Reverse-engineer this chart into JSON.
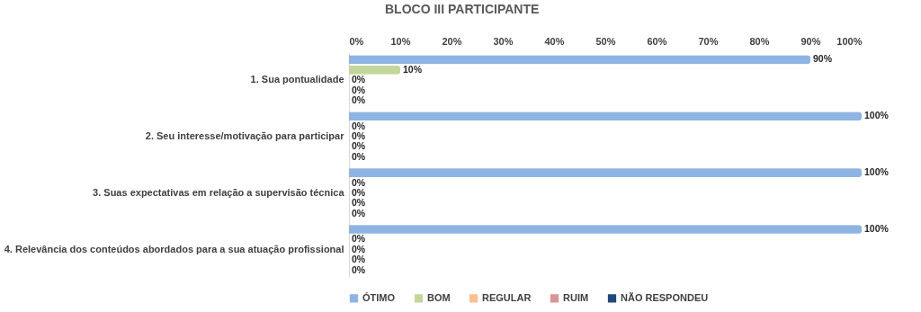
{
  "chart_data": {
    "type": "bar",
    "orientation": "horizontal",
    "title": "BLOCO III PARTICIPANTE",
    "categories": [
      "1. Sua pontualidade",
      "2. Seu interesse/motivação para participar",
      "3. Suas expectativas em relação a supervisão técnica",
      "4. Relevância dos conteúdos abordados para a sua atuação profissional"
    ],
    "series": [
      {
        "name": "ÓTIMO",
        "color": "#8eb4e3",
        "values": [
          90,
          100,
          100,
          100
        ],
        "value_labels": [
          "90%",
          "100%",
          "100%",
          "100%"
        ]
      },
      {
        "name": "BOM",
        "color": "#c3d69b",
        "values": [
          10,
          0,
          0,
          0
        ],
        "value_labels": [
          "10%",
          "0%",
          "0%",
          "0%"
        ]
      },
      {
        "name": "REGULAR",
        "color": "#fac090",
        "values": [
          0,
          0,
          0,
          0
        ],
        "value_labels": [
          "0%",
          "0%",
          "0%",
          "0%"
        ]
      },
      {
        "name": "RUIM",
        "color": "#d99694",
        "values": [
          0,
          0,
          0,
          0
        ],
        "value_labels": [
          "0%",
          "0%",
          "0%",
          "0%"
        ]
      },
      {
        "name": "NÃO RESPONDEU",
        "color": "#1f497d",
        "values": [
          0,
          0,
          0,
          0
        ],
        "value_labels": [
          "0%",
          "0%",
          "0%",
          "0%"
        ]
      }
    ],
    "xlim": [
      0,
      100
    ],
    "xticks": [
      {
        "value": 0,
        "label": "0%"
      },
      {
        "value": 10,
        "label": "10%"
      },
      {
        "value": 20,
        "label": "20%"
      },
      {
        "value": 30,
        "label": "30%"
      },
      {
        "value": 40,
        "label": "40%"
      },
      {
        "value": 50,
        "label": "50%"
      },
      {
        "value": 60,
        "label": "60%"
      },
      {
        "value": 70,
        "label": "70%"
      },
      {
        "value": 80,
        "label": "80%"
      },
      {
        "value": 90,
        "label": "90%"
      },
      {
        "value": 100,
        "label": "100%"
      }
    ],
    "grid": false,
    "legend": "bottom"
  }
}
